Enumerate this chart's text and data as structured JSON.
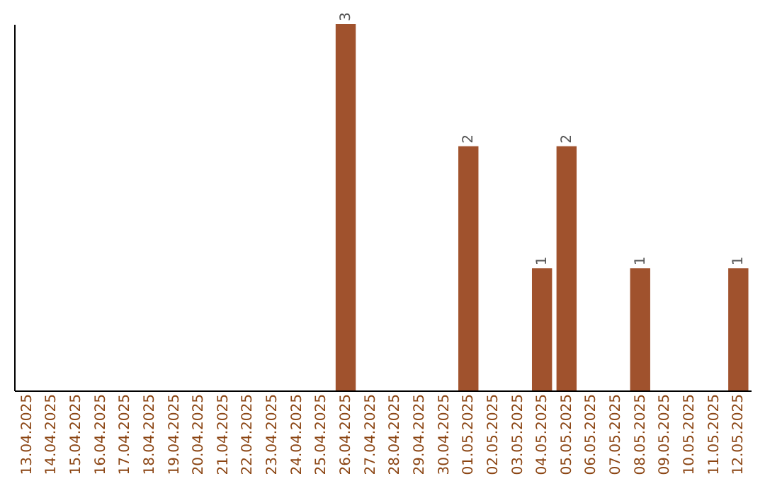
{
  "chart_data": {
    "type": "bar",
    "categories": [
      "13.04.2025",
      "14.04.2025",
      "15.04.2025",
      "16.04.2025",
      "17.04.2025",
      "18.04.2025",
      "19.04.2025",
      "20.04.2025",
      "21.04.2025",
      "22.04.2025",
      "23.04.2025",
      "24.04.2025",
      "25.04.2025",
      "26.04.2025",
      "27.04.2025",
      "28.04.2025",
      "29.04.2025",
      "30.04.2025",
      "01.05.2025",
      "02.05.2025",
      "03.05.2025",
      "04.05.2025",
      "05.05.2025",
      "06.05.2025",
      "07.05.2025",
      "08.05.2025",
      "09.05.2025",
      "10.05.2025",
      "11.05.2025",
      "12.05.2025"
    ],
    "values": [
      null,
      null,
      null,
      null,
      null,
      null,
      null,
      null,
      null,
      null,
      null,
      null,
      null,
      3,
      null,
      null,
      null,
      null,
      2,
      null,
      null,
      1,
      2,
      null,
      null,
      1,
      null,
      null,
      null,
      1
    ],
    "data_labels": true,
    "color": "#a0522d",
    "grid": false
  }
}
